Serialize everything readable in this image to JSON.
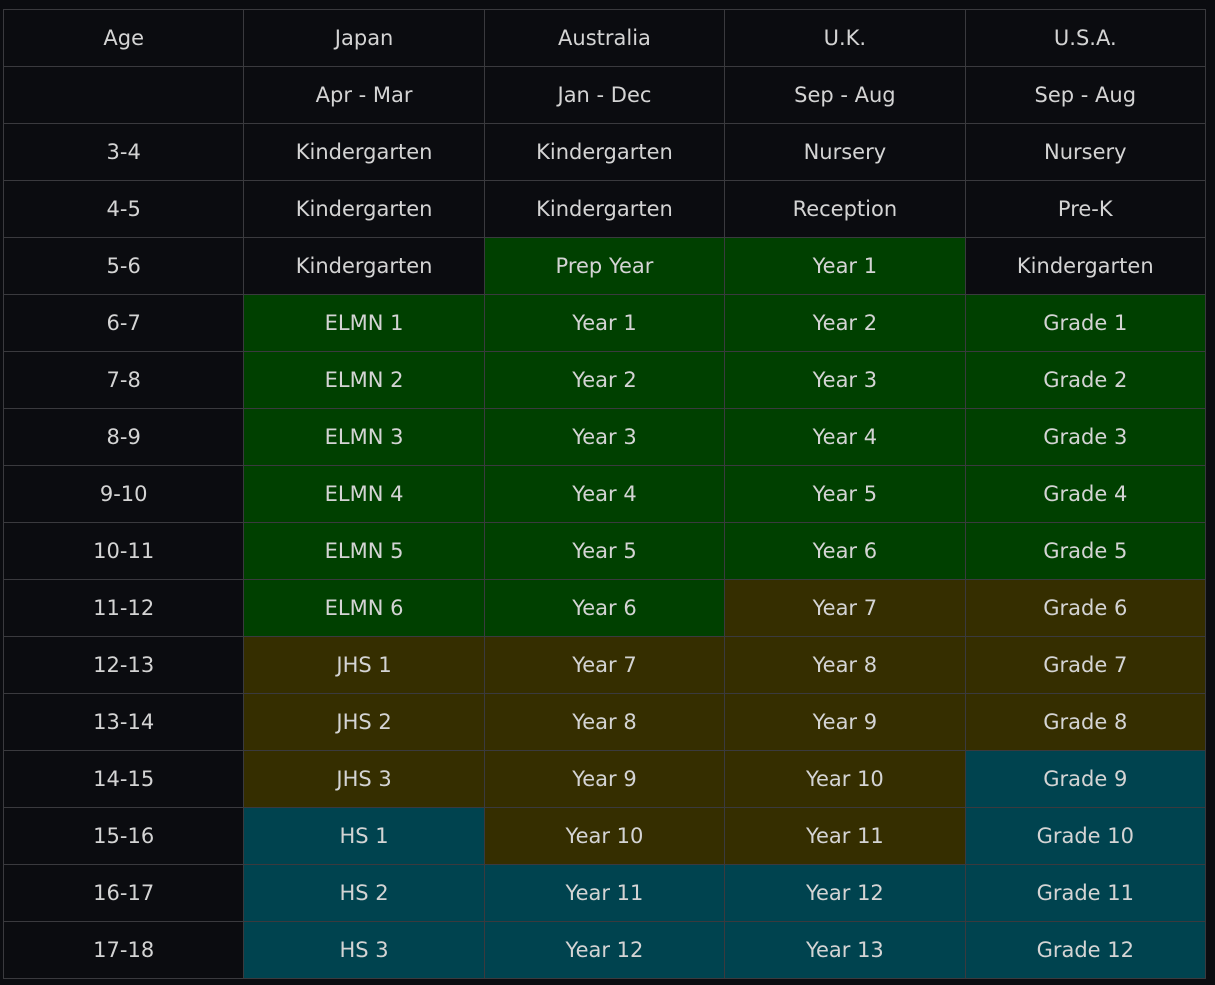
{
  "table": {
    "header": [
      "Age",
      "Japan",
      "Australia",
      "U.K.",
      "U.S.A."
    ],
    "terms": [
      "Apr - Mar",
      "Jan - Dec",
      "Sep - Aug",
      "Sep - Aug"
    ],
    "rows": [
      {
        "age": "3-4",
        "cells": [
          "Kindergarten",
          "Kindergarten",
          "Nursery",
          "Nursery"
        ],
        "colors": [
          "#0b0c10",
          "#0b0c10",
          "#0b0c10",
          "#0b0c10"
        ]
      },
      {
        "age": "4-5",
        "cells": [
          "Kindergarten",
          "Kindergarten",
          "Reception",
          "Pre-K"
        ],
        "colors": [
          "#0b0c10",
          "#0b0c10",
          "#0b0c10",
          "#0b0c10"
        ]
      },
      {
        "age": "5-6",
        "cells": [
          "Kindergarten",
          "Prep Year",
          "Year 1",
          "Kindergarten"
        ],
        "colors": [
          "#0b0c10",
          "#004000",
          "#004000",
          "#0b0c10"
        ]
      },
      {
        "age": "6-7",
        "cells": [
          "ELMN 1",
          "Year 1",
          "Year 2",
          "Grade 1"
        ],
        "colors": [
          "#004000",
          "#004000",
          "#004000",
          "#004000"
        ]
      },
      {
        "age": "7-8",
        "cells": [
          "ELMN 2",
          "Year 2",
          "Year 3",
          "Grade 2"
        ],
        "colors": [
          "#004000",
          "#004000",
          "#004000",
          "#004000"
        ]
      },
      {
        "age": "8-9",
        "cells": [
          "ELMN 3",
          "Year 3",
          "Year 4",
          "Grade 3"
        ],
        "colors": [
          "#004000",
          "#004000",
          "#004000",
          "#004000"
        ]
      },
      {
        "age": "9-10",
        "cells": [
          "ELMN 4",
          "Year 4",
          "Year 5",
          "Grade 4"
        ],
        "colors": [
          "#004000",
          "#004000",
          "#004000",
          "#004000"
        ]
      },
      {
        "age": "10-11",
        "cells": [
          "ELMN 5",
          "Year 5",
          "Year 6",
          "Grade 5"
        ],
        "colors": [
          "#004000",
          "#004000",
          "#004000",
          "#004000"
        ]
      },
      {
        "age": "11-12",
        "cells": [
          "ELMN 6",
          "Year 6",
          "Year 7",
          "Grade 6"
        ],
        "colors": [
          "#004000",
          "#004000",
          "#352e00",
          "#352e00"
        ]
      },
      {
        "age": "12-13",
        "cells": [
          "JHS 1",
          "Year 7",
          "Year 8",
          "Grade 7"
        ],
        "colors": [
          "#352e00",
          "#352e00",
          "#352e00",
          "#352e00"
        ]
      },
      {
        "age": "13-14",
        "cells": [
          "JHS 2",
          "Year 8",
          "Year 9",
          "Grade 8"
        ],
        "colors": [
          "#352e00",
          "#352e00",
          "#352e00",
          "#352e00"
        ]
      },
      {
        "age": "14-15",
        "cells": [
          "JHS 3",
          "Year 9",
          "Year 10",
          "Grade 9"
        ],
        "colors": [
          "#352e00",
          "#352e00",
          "#352e00",
          "#00434f"
        ]
      },
      {
        "age": "15-16",
        "cells": [
          "HS 1",
          "Year 10",
          "Year 11",
          "Grade 10"
        ],
        "colors": [
          "#00434f",
          "#352e00",
          "#352e00",
          "#00434f"
        ]
      },
      {
        "age": "16-17",
        "cells": [
          "HS 2",
          "Year 11",
          "Year 12",
          "Grade 11"
        ],
        "colors": [
          "#00434f",
          "#00434f",
          "#00434f",
          "#00434f"
        ]
      },
      {
        "age": "17-18",
        "cells": [
          "HS 3",
          "Year 12",
          "Year 13",
          "Grade 12"
        ],
        "colors": [
          "#00434f",
          "#00434f",
          "#00434f",
          "#00434f"
        ]
      }
    ]
  }
}
